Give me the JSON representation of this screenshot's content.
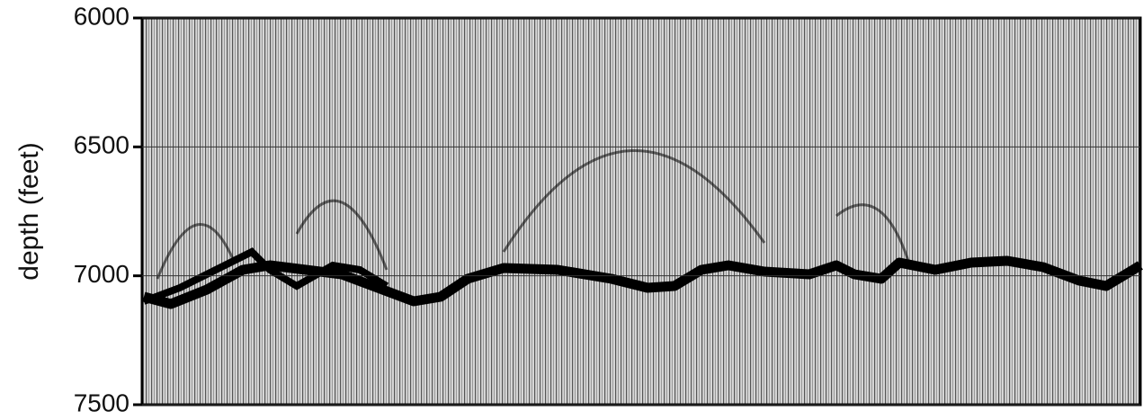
{
  "chart_data": {
    "type": "seismic",
    "ylabel": "depth (feet)",
    "ylim": [
      6000,
      7500
    ],
    "yticks": [
      6000,
      6500,
      7000,
      7500
    ],
    "inverted_y": true,
    "grid": true
  }
}
